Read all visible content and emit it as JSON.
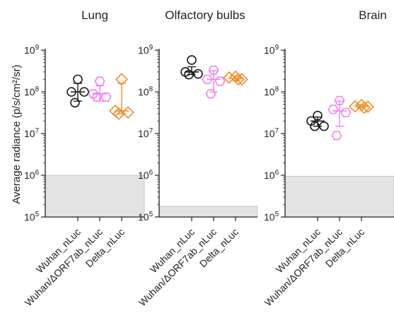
{
  "ylabel": "Average radiance (p/s/cm²/sr)",
  "tick_labels": [
    {
      "base": "10",
      "exp": "5",
      "value": 100000
    },
    {
      "base": "10",
      "exp": "6",
      "value": 1000000
    },
    {
      "base": "10",
      "exp": "7",
      "value": 10000000
    },
    {
      "base": "10",
      "exp": "8",
      "value": 100000000
    },
    {
      "base": "10",
      "exp": "9",
      "value": 1000000000
    }
  ],
  "categories": [
    "Wuhan_nLuc",
    "Wuhan/ΔORF7ab_nLuc",
    "Delta_nLuc"
  ],
  "colors": {
    "Wuhan_nLuc": "#1a1a1a",
    "Wuhan/ΔORF7ab_nLuc": "#ee82ee",
    "Delta_nLuc": "#f28c28",
    "background_band": "#e3e3e3"
  },
  "markers": {
    "Wuhan_nLuc": "circle",
    "Wuhan/ΔORF7ab_nLuc": "hexagon",
    "Delta_nLuc": "diamond"
  },
  "chart_data": [
    {
      "type": "scatter",
      "title": "Lung",
      "ylim": [
        100000,
        1000000000
      ],
      "yscale": "log",
      "shaded_below": 1000000,
      "series": [
        {
          "category": "Wuhan_nLuc",
          "points": [
            200000000,
            100000000,
            100000000,
            55000000
          ],
          "mean": 100000000,
          "error": [
            60000000,
            160000000
          ]
        },
        {
          "category": "Wuhan/ΔORF7ab_nLuc",
          "points": [
            180000000,
            90000000,
            75000000,
            75000000
          ],
          "mean": 90000000,
          "error": [
            60000000,
            140000000
          ]
        },
        {
          "category": "Delta_nLuc",
          "points": [
            200000000,
            35000000,
            32000000,
            30000000
          ],
          "mean": 35000000,
          "error": [
            30000000,
            160000000
          ]
        }
      ]
    },
    {
      "type": "scatter",
      "title": "Olfactory bulbs",
      "ylim": [
        100000,
        1000000000
      ],
      "yscale": "log",
      "shaded_below": 180000,
      "series": [
        {
          "category": "Wuhan_nLuc",
          "points": [
            580000000,
            300000000,
            270000000,
            260000000
          ],
          "mean": 300000000,
          "error": [
            260000000,
            400000000
          ]
        },
        {
          "category": "Wuhan/ΔORF7ab_nLuc",
          "points": [
            330000000,
            200000000,
            180000000,
            90000000
          ],
          "mean": 200000000,
          "error": [
            100000000,
            320000000
          ]
        },
        {
          "category": "Delta_nLuc",
          "points": [
            230000000,
            220000000,
            200000000,
            200000000
          ],
          "mean": 210000000,
          "error": [
            190000000,
            240000000
          ]
        }
      ]
    },
    {
      "type": "scatter",
      "title": "Brain",
      "ylim": [
        100000,
        1000000000
      ],
      "yscale": "log",
      "shaded_below": 950000,
      "series": [
        {
          "category": "Wuhan_nLuc",
          "points": [
            27000000,
            20000000,
            15000000,
            15000000
          ],
          "mean": 20000000,
          "error": [
            15000000,
            25000000
          ]
        },
        {
          "category": "Wuhan/ΔORF7ab_nLuc",
          "points": [
            62000000,
            38000000,
            32000000,
            9000000
          ],
          "mean": 35000000,
          "error": [
            15000000,
            60000000
          ]
        },
        {
          "category": "Delta_nLuc",
          "points": [
            48000000,
            45000000,
            44000000,
            42000000
          ],
          "mean": 45000000,
          "error": [
            41000000,
            49000000
          ]
        }
      ]
    }
  ]
}
